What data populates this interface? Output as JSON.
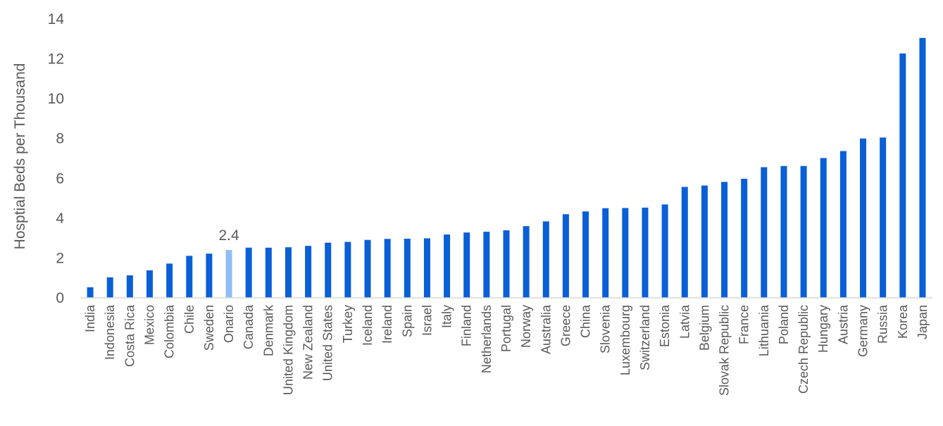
{
  "chart_data": {
    "type": "bar",
    "ylabel": "Hosptial Beds per Thousand",
    "xlabel": "",
    "ylim": [
      0,
      14
    ],
    "yticks": [
      0,
      2,
      4,
      6,
      8,
      10,
      12,
      14
    ],
    "grid": false,
    "legend": "none",
    "colors": {
      "bar": "#0a5fd6",
      "highlight": "#8fbcf5",
      "axis": "#d9d9d9",
      "text": "#595959"
    },
    "highlight_category": "Onario",
    "data_labels": [
      {
        "category": "Onario",
        "text": "2.4"
      }
    ],
    "categories": [
      "India",
      "Indonesia",
      "Costa Rica",
      "Mexico",
      "Colombia",
      "Chile",
      "Sweden",
      "Onario",
      "Canada",
      "Denmark",
      "United Kingdom",
      "New Zealand",
      "United States",
      "Turkey",
      "Iceland",
      "Ireland",
      "Spain",
      "Israel",
      "Italy",
      "Finland",
      "Netherlands",
      "Portugal",
      "Norway",
      "Australia",
      "Greece",
      "China",
      "Slovenia",
      "Luxembourg",
      "Switzerland",
      "Estonia",
      "Latvia",
      "Belgium",
      "Slovak Republic",
      "France",
      "Lithuania",
      "Poland",
      "Czech Republic",
      "Hungary",
      "Austria",
      "Germany",
      "Russia",
      "Korea",
      "Japan"
    ],
    "values": [
      0.53,
      1.03,
      1.13,
      1.38,
      1.72,
      2.11,
      2.22,
      2.4,
      2.52,
      2.52,
      2.54,
      2.61,
      2.77,
      2.81,
      2.91,
      2.96,
      2.97,
      2.99,
      3.18,
      3.28,
      3.32,
      3.39,
      3.6,
      3.84,
      4.2,
      4.34,
      4.5,
      4.51,
      4.53,
      4.69,
      5.57,
      5.64,
      5.82,
      5.98,
      6.56,
      6.62,
      6.62,
      7.02,
      7.37,
      8.0,
      8.05,
      12.27,
      13.05
    ]
  }
}
